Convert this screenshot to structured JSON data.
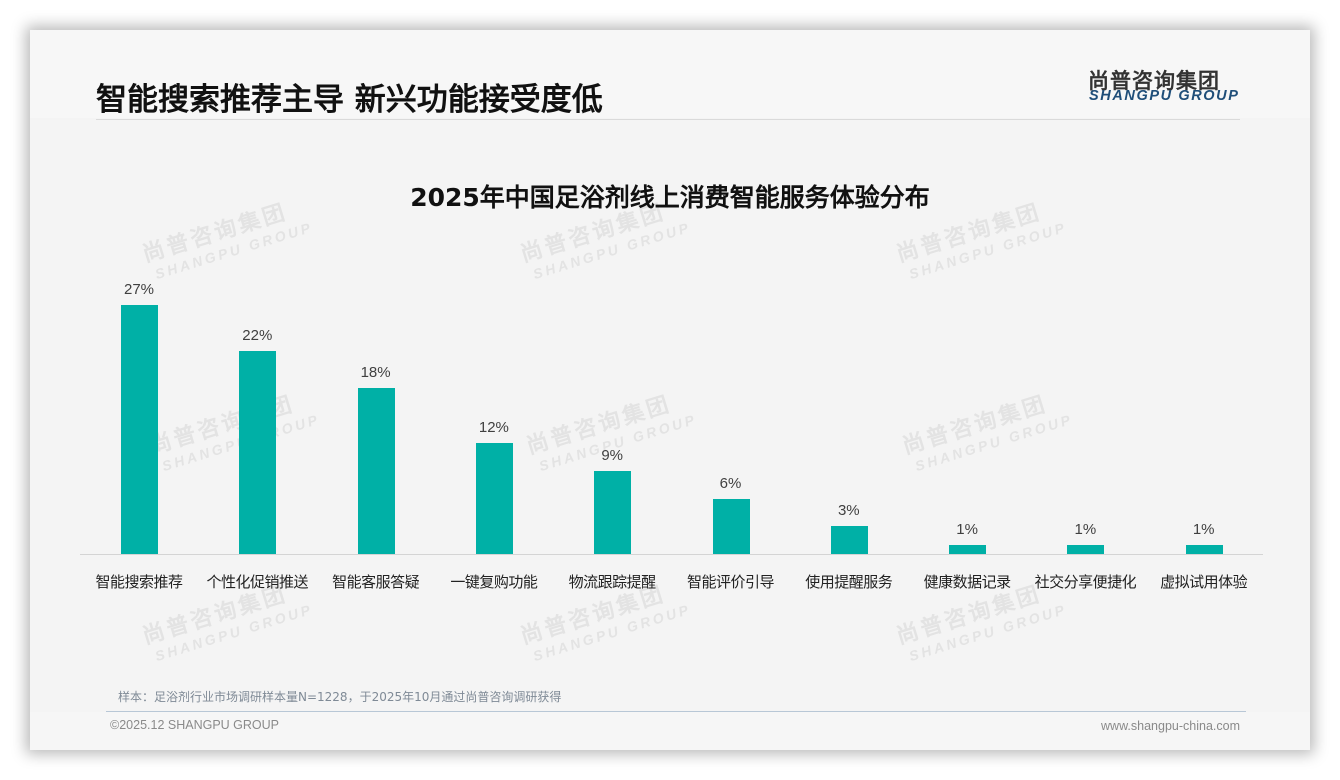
{
  "header": {
    "title": "智能搜索推荐主导 新兴功能接受度低",
    "logo_cn": "尚普咨询集团",
    "logo_en": "SHANGPU GROUP"
  },
  "watermark": {
    "cn": "尚普咨询集团",
    "en": "SHANGPU GROUP"
  },
  "chart_data": {
    "type": "bar",
    "title": "2025年中国足浴剂线上消费智能服务体验分布",
    "xlabel": "",
    "ylabel": "",
    "categories": [
      "智能搜索推荐",
      "个性化促销推送",
      "智能客服答疑",
      "一键复购功能",
      "物流跟踪提醒",
      "智能评价引导",
      "使用提醒服务",
      "健康数据记录",
      "社交分享便捷化",
      "虚拟试用体验"
    ],
    "values": [
      27,
      22,
      18,
      12,
      9,
      6,
      3,
      1,
      1,
      1
    ],
    "value_labels": [
      "27%",
      "22%",
      "18%",
      "12%",
      "9%",
      "6%",
      "3%",
      "1%",
      "1%",
      "1%"
    ],
    "unit": "%",
    "ylim": [
      0,
      27
    ],
    "grid": false,
    "legend": null,
    "bar_color": "#00b0a6"
  },
  "footer": {
    "source_note": "样本：足浴剂行业市场调研样本量N=1228，于2025年10月通过尚普咨询调研获得",
    "copyright": "©2025.12 SHANGPU GROUP",
    "website": "www.shangpu-china.com"
  }
}
